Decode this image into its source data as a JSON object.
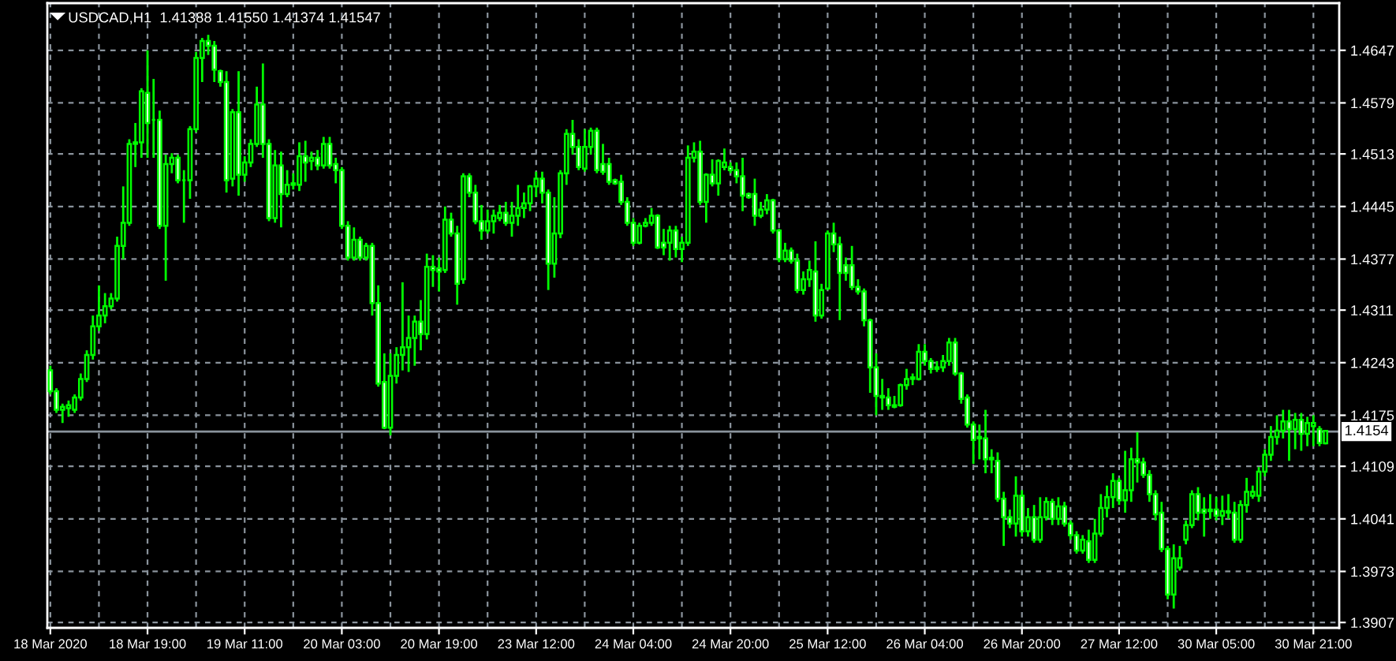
{
  "chart_data": {
    "type": "candlestick",
    "title": "USDCAD,H1  1.41388 1.41550 1.41374 1.41547",
    "categories": [
      "18 Mar 2020",
      null,
      null,
      null,
      null,
      null,
      null,
      null,
      null,
      null,
      null,
      null,
      null,
      null,
      null,
      null,
      "18 Mar 19:00",
      null,
      null,
      null,
      null,
      null,
      null,
      null,
      null,
      null,
      null,
      null,
      null,
      null,
      null,
      null,
      "19 Mar 11:00",
      null,
      null,
      null,
      null,
      null,
      null,
      null,
      null,
      null,
      null,
      null,
      null,
      null,
      null,
      null,
      "20 Mar 03:00",
      null,
      null,
      null,
      null,
      null,
      null,
      null,
      null,
      null,
      null,
      null,
      null,
      null,
      null,
      null,
      "20 Mar 19:00",
      null,
      null,
      null,
      null,
      null,
      null,
      null,
      null,
      null,
      null,
      null,
      null,
      null,
      null,
      null,
      "23 Mar 12:00",
      null,
      null,
      null,
      null,
      null,
      null,
      null,
      null,
      null,
      null,
      null,
      null,
      null,
      null,
      null,
      "24 Mar 04:00",
      null,
      null,
      null,
      null,
      null,
      null,
      null,
      null,
      null,
      null,
      null,
      null,
      null,
      null,
      null,
      "24 Mar 20:00",
      null,
      null,
      null,
      null,
      null,
      null,
      null,
      null,
      null,
      null,
      null,
      null,
      null,
      null,
      null,
      "25 Mar 12:00",
      null,
      null,
      null,
      null,
      null,
      null,
      null,
      null,
      null,
      null,
      null,
      null,
      null,
      null,
      null,
      "26 Mar 04:00",
      null,
      null,
      null,
      null,
      null,
      null,
      null,
      null,
      null,
      null,
      null,
      null,
      null,
      null,
      null,
      "26 Mar 20:00",
      null,
      null,
      null,
      null,
      null,
      null,
      null,
      null,
      null,
      null,
      null,
      null,
      null,
      null,
      null,
      "27 Mar 12:00",
      null,
      null,
      null,
      null,
      null,
      null,
      null,
      null,
      null,
      null,
      null,
      null,
      null,
      null,
      null,
      "30 Mar 05:00",
      null,
      null,
      null,
      null,
      null,
      null,
      null,
      null,
      null,
      null,
      null,
      null,
      null,
      null,
      null,
      "30 Mar 21:00",
      null,
      null
    ],
    "color": "#00ff00",
    "ohlc": [
      [
        1.4233,
        1.4239,
        1.4202,
        1.4206
      ],
      [
        1.4206,
        1.421,
        1.4178,
        1.4182
      ],
      [
        1.4182,
        1.419,
        1.4165,
        1.4186
      ],
      [
        1.4184,
        1.4194,
        1.4173,
        1.4188
      ],
      [
        1.4182,
        1.4202,
        1.4178,
        1.4198
      ],
      [
        1.4198,
        1.4229,
        1.4194,
        1.4222
      ],
      [
        1.4222,
        1.4259,
        1.4218,
        1.4253
      ],
      [
        1.4253,
        1.4304,
        1.4247,
        1.429
      ],
      [
        1.429,
        1.4343,
        1.4284,
        1.4304
      ],
      [
        1.4304,
        1.4333,
        1.4294,
        1.4316
      ],
      [
        1.4316,
        1.4333,
        1.4312,
        1.4326
      ],
      [
        1.4326,
        1.4406,
        1.4322,
        1.4394
      ],
      [
        1.4394,
        1.4471,
        1.4377,
        1.4424
      ],
      [
        1.4424,
        1.4532,
        1.442,
        1.4526
      ],
      [
        1.4526,
        1.4553,
        1.4496,
        1.4528
      ],
      [
        1.4528,
        1.4598,
        1.4508,
        1.4594
      ],
      [
        1.4592,
        1.4647,
        1.4508,
        1.4553
      ],
      [
        1.4557,
        1.461,
        1.4508,
        1.4557
      ],
      [
        1.4557,
        1.4569,
        1.4416,
        1.442
      ],
      [
        1.442,
        1.4512,
        1.4349,
        1.45
      ],
      [
        1.45,
        1.4514,
        1.4488,
        1.4508
      ],
      [
        1.4508,
        1.4512,
        1.4475,
        1.4479
      ],
      [
        1.4479,
        1.4492,
        1.4424,
        1.4479
      ],
      [
        1.4479,
        1.4549,
        1.4455,
        1.4545
      ],
      [
        1.4545,
        1.4645,
        1.4541,
        1.4637
      ],
      [
        1.4637,
        1.4663,
        1.4606,
        1.4659
      ],
      [
        1.4659,
        1.4667,
        1.4641,
        1.4653
      ],
      [
        1.4653,
        1.4659,
        1.4606,
        1.4622
      ],
      [
        1.462,
        1.4622,
        1.46,
        1.4606
      ],
      [
        1.4606,
        1.462,
        1.4463,
        1.4479
      ],
      [
        1.4481,
        1.4571,
        1.4471,
        1.4567
      ],
      [
        1.4567,
        1.462,
        1.4459,
        1.4486
      ],
      [
        1.4486,
        1.451,
        1.4477,
        1.4502
      ],
      [
        1.4502,
        1.4532,
        1.4496,
        1.4526
      ],
      [
        1.4526,
        1.46,
        1.4522,
        1.4577
      ],
      [
        1.4577,
        1.463,
        1.4508,
        1.4526
      ],
      [
        1.4526,
        1.4532,
        1.4426,
        1.443
      ],
      [
        1.443,
        1.4518,
        1.4424,
        1.4498
      ],
      [
        1.4498,
        1.4516,
        1.4418,
        1.4461
      ],
      [
        1.4461,
        1.4492,
        1.4457,
        1.4473
      ],
      [
        1.4473,
        1.4488,
        1.4467,
        1.4475
      ],
      [
        1.4473,
        1.4528,
        1.4465,
        1.451
      ],
      [
        1.451,
        1.453,
        1.4477,
        1.4502
      ],
      [
        1.4504,
        1.4516,
        1.4492,
        1.4508
      ],
      [
        1.4508,
        1.4518,
        1.4492,
        1.4498
      ],
      [
        1.4498,
        1.4535,
        1.4494,
        1.4526
      ],
      [
        1.4526,
        1.4535,
        1.4494,
        1.4498
      ],
      [
        1.45,
        1.4508,
        1.4475,
        1.4492
      ],
      [
        1.4492,
        1.4496,
        1.4416,
        1.442
      ],
      [
        1.442,
        1.4426,
        1.4375,
        1.4379
      ],
      [
        1.4379,
        1.4418,
        1.4375,
        1.4402
      ],
      [
        1.4402,
        1.4406,
        1.4375,
        1.4379
      ],
      [
        1.4379,
        1.4398,
        1.4375,
        1.4394
      ],
      [
        1.4394,
        1.4398,
        1.4304,
        1.432
      ],
      [
        1.432,
        1.4343,
        1.4212,
        1.4216
      ],
      [
        1.4218,
        1.4255,
        1.4157,
        1.4159
      ],
      [
        1.4159,
        1.4255,
        1.4149,
        1.4226
      ],
      [
        1.4226,
        1.4263,
        1.4216,
        1.4253
      ],
      [
        1.4253,
        1.4347,
        1.4233,
        1.4263
      ],
      [
        1.4263,
        1.4304,
        1.4231,
        1.4275
      ],
      [
        1.4275,
        1.4304,
        1.4239,
        1.4296
      ],
      [
        1.4296,
        1.4324,
        1.4259,
        1.428
      ],
      [
        1.428,
        1.4384,
        1.4273,
        1.4367
      ],
      [
        1.4367,
        1.4382,
        1.4341,
        1.4363
      ],
      [
        1.4365,
        1.4379,
        1.4335,
        1.4361
      ],
      [
        1.4363,
        1.4445,
        1.4359,
        1.4428
      ],
      [
        1.4428,
        1.4437,
        1.4406,
        1.441
      ],
      [
        1.441,
        1.442,
        1.4318,
        1.4345
      ],
      [
        1.4351,
        1.4488,
        1.4345,
        1.4484
      ],
      [
        1.4484,
        1.4488,
        1.4457,
        1.4463
      ],
      [
        1.4463,
        1.4473,
        1.4422,
        1.4426
      ],
      [
        1.4426,
        1.4447,
        1.4402,
        1.4414
      ],
      [
        1.4414,
        1.4441,
        1.441,
        1.4426
      ],
      [
        1.4426,
        1.4441,
        1.441,
        1.4433
      ],
      [
        1.443,
        1.4447,
        1.4426,
        1.4437
      ],
      [
        1.4437,
        1.4451,
        1.442,
        1.4424
      ],
      [
        1.4424,
        1.4451,
        1.4406,
        1.4433
      ],
      [
        1.4433,
        1.4473,
        1.442,
        1.4443
      ],
      [
        1.4443,
        1.4463,
        1.443,
        1.4449
      ],
      [
        1.4449,
        1.4473,
        1.4439,
        1.4471
      ],
      [
        1.4471,
        1.449,
        1.4457,
        1.4481
      ],
      [
        1.4481,
        1.449,
        1.4449,
        1.4463
      ],
      [
        1.4463,
        1.4467,
        1.4337,
        1.4371
      ],
      [
        1.4371,
        1.4457,
        1.4353,
        1.441
      ],
      [
        1.441,
        1.4492,
        1.4404,
        1.4488
      ],
      [
        1.4488,
        1.4545,
        1.4473,
        1.4539
      ],
      [
        1.4539,
        1.4557,
        1.4512,
        1.4522
      ],
      [
        1.4522,
        1.4532,
        1.4492,
        1.4496
      ],
      [
        1.4494,
        1.4545,
        1.449,
        1.4522
      ],
      [
        1.4522,
        1.4547,
        1.4512,
        1.4543
      ],
      [
        1.4543,
        1.4547,
        1.4488,
        1.4492
      ],
      [
        1.45,
        1.4526,
        1.4486,
        1.449
      ],
      [
        1.45,
        1.4508,
        1.4473,
        1.4477
      ],
      [
        1.4479,
        1.4481,
        1.4473,
        1.4475
      ],
      [
        1.4477,
        1.4486,
        1.4447,
        1.4451
      ],
      [
        1.4451,
        1.4457,
        1.442,
        1.4424
      ],
      [
        1.4424,
        1.443,
        1.4394,
        1.4398
      ],
      [
        1.4398,
        1.4424,
        1.4396,
        1.442
      ],
      [
        1.442,
        1.443,
        1.4418,
        1.4424
      ],
      [
        1.4424,
        1.4443,
        1.442,
        1.4433
      ],
      [
        1.4433,
        1.4435,
        1.439,
        1.4392
      ],
      [
        1.4398,
        1.4416,
        1.4382,
        1.4392
      ],
      [
        1.4398,
        1.442,
        1.4375,
        1.4414
      ],
      [
        1.4414,
        1.442,
        1.4379,
        1.439
      ],
      [
        1.439,
        1.4406,
        1.4373,
        1.4398
      ],
      [
        1.4398,
        1.4524,
        1.4394,
        1.4508
      ],
      [
        1.4508,
        1.4528,
        1.4502,
        1.4516
      ],
      [
        1.4516,
        1.453,
        1.4447,
        1.4451
      ],
      [
        1.4451,
        1.4488,
        1.4424,
        1.4486
      ],
      [
        1.4486,
        1.4506,
        1.4471,
        1.4475
      ],
      [
        1.4475,
        1.4506,
        1.4459,
        1.4504
      ],
      [
        1.4496,
        1.452,
        1.4492,
        1.4502
      ],
      [
        1.4496,
        1.4502,
        1.4488,
        1.4492
      ],
      [
        1.4492,
        1.4502,
        1.4475,
        1.4484
      ],
      [
        1.4484,
        1.4508,
        1.4439,
        1.4459
      ],
      [
        1.4461,
        1.4463,
        1.4455,
        1.4457
      ],
      [
        1.4461,
        1.4481,
        1.442,
        1.4433
      ],
      [
        1.4433,
        1.4451,
        1.443,
        1.4441
      ],
      [
        1.4441,
        1.4461,
        1.4435,
        1.4453
      ],
      [
        1.4453,
        1.4455,
        1.441,
        1.4414
      ],
      [
        1.4414,
        1.4416,
        1.4373,
        1.4377
      ],
      [
        1.4377,
        1.4398,
        1.4373,
        1.4388
      ],
      [
        1.4388,
        1.4392,
        1.4371,
        1.4375
      ],
      [
        1.4375,
        1.4384,
        1.4333,
        1.4337
      ],
      [
        1.4337,
        1.4361,
        1.4331,
        1.4351
      ],
      [
        1.4351,
        1.4375,
        1.4341,
        1.4363
      ],
      [
        1.4361,
        1.44,
        1.4296,
        1.4304
      ],
      [
        1.4304,
        1.4345,
        1.43,
        1.4337
      ],
      [
        1.4339,
        1.4414,
        1.4337,
        1.441
      ],
      [
        1.441,
        1.4424,
        1.4386,
        1.4396
      ],
      [
        1.4396,
        1.4406,
        1.4298,
        1.4359
      ],
      [
        1.4369,
        1.4379,
        1.4349,
        1.4359
      ],
      [
        1.4369,
        1.4394,
        1.4337,
        1.4341
      ],
      [
        1.4341,
        1.4351,
        1.4331,
        1.4335
      ],
      [
        1.4335,
        1.4339,
        1.429,
        1.4298
      ],
      [
        1.4298,
        1.43,
        1.4204,
        1.4237
      ],
      [
        1.4237,
        1.4255,
        1.4175,
        1.42
      ],
      [
        1.42,
        1.4222,
        1.4182,
        1.4198
      ],
      [
        1.4198,
        1.421,
        1.4182,
        1.4188
      ],
      [
        1.4188,
        1.42,
        1.4184,
        1.4186
      ],
      [
        1.4188,
        1.4216,
        1.4186,
        1.4214
      ],
      [
        1.4214,
        1.4235,
        1.4208,
        1.4222
      ],
      [
        1.4222,
        1.4229,
        1.4214,
        1.4224
      ],
      [
        1.4222,
        1.4267,
        1.422,
        1.4257
      ],
      [
        1.4257,
        1.4267,
        1.4239,
        1.4245
      ],
      [
        1.4245,
        1.4249,
        1.4229,
        1.4235
      ],
      [
        1.4235,
        1.4245,
        1.4231,
        1.4237
      ],
      [
        1.4237,
        1.4253,
        1.4231,
        1.4245
      ],
      [
        1.4245,
        1.4275,
        1.4239,
        1.4269
      ],
      [
        1.4269,
        1.4275,
        1.4226,
        1.4229
      ],
      [
        1.4229,
        1.4231,
        1.419,
        1.4196
      ],
      [
        1.4198,
        1.4202,
        1.4159,
        1.4163
      ],
      [
        1.4163,
        1.4167,
        1.4112,
        1.4143
      ],
      [
        1.4147,
        1.4163,
        1.4118,
        1.4145
      ],
      [
        1.4145,
        1.4182,
        1.41,
        1.4118
      ],
      [
        1.412,
        1.4131,
        1.41,
        1.4118
      ],
      [
        1.4116,
        1.4127,
        1.4063,
        1.4067
      ],
      [
        1.4067,
        1.4076,
        1.4006,
        1.4043
      ],
      [
        1.4043,
        1.4053,
        1.4029,
        1.4035
      ],
      [
        1.4035,
        1.4096,
        1.4018,
        1.4071
      ],
      [
        1.4071,
        1.4078,
        1.4018,
        1.4025
      ],
      [
        1.4025,
        1.4055,
        1.4018,
        1.4043
      ],
      [
        1.4043,
        1.4059,
        1.401,
        1.4014
      ],
      [
        1.4014,
        1.4069,
        1.401,
        1.4043
      ],
      [
        1.4043,
        1.4069,
        1.4039,
        1.4063
      ],
      [
        1.4063,
        1.4067,
        1.4033,
        1.4041
      ],
      [
        1.4041,
        1.4069,
        1.4033,
        1.4057
      ],
      [
        1.4057,
        1.4063,
        1.4031,
        1.4035
      ],
      [
        1.4035,
        1.4039,
        1.4014,
        1.402
      ],
      [
        1.402,
        1.4025,
        1.3996,
        1.4
      ],
      [
        1.4,
        1.402,
        1.3996,
        1.4014
      ],
      [
        1.4012,
        1.4027,
        1.3984,
        1.3988
      ],
      [
        1.3988,
        1.4041,
        1.3984,
        1.4022
      ],
      [
        1.4022,
        1.4073,
        1.4018,
        1.4055
      ],
      [
        1.4055,
        1.4084,
        1.4043,
        1.4069
      ],
      [
        1.4069,
        1.41,
        1.4055,
        1.409
      ],
      [
        1.409,
        1.4094,
        1.4059,
        1.4065
      ],
      [
        1.4065,
        1.4129,
        1.4049,
        1.4078
      ],
      [
        1.4078,
        1.4133,
        1.4063,
        1.4118
      ],
      [
        1.4118,
        1.4153,
        1.4088,
        1.4114
      ],
      [
        1.4114,
        1.412,
        1.4094,
        1.4098
      ],
      [
        1.4098,
        1.4104,
        1.4063,
        1.4073
      ],
      [
        1.4073,
        1.4078,
        1.4039,
        1.4047
      ],
      [
        1.4049,
        1.4063,
        1.3998,
        1.4002
      ],
      [
        1.4002,
        1.4006,
        1.3937,
        1.3943
      ],
      [
        1.3943,
        1.4008,
        1.3925,
        1.399
      ],
      [
        1.3978,
        1.4006,
        1.3974,
        1.399
      ],
      [
        1.4014,
        1.4039,
        1.4008,
        1.4033
      ],
      [
        1.4033,
        1.4078,
        1.4029,
        1.4073
      ],
      [
        1.4073,
        1.4082,
        1.4039,
        1.4049
      ],
      [
        1.4053,
        1.4069,
        1.4018,
        1.4049
      ],
      [
        1.4051,
        1.4073,
        1.4041,
        1.4053
      ],
      [
        1.4053,
        1.4069,
        1.4039,
        1.4045
      ],
      [
        1.4045,
        1.4071,
        1.4033,
        1.4051
      ],
      [
        1.4049,
        1.4073,
        1.4041,
        1.4051
      ],
      [
        1.4049,
        1.4063,
        1.401,
        1.4014
      ],
      [
        1.4014,
        1.4065,
        1.401,
        1.4059
      ],
      [
        1.4059,
        1.4094,
        1.4049,
        1.4076
      ],
      [
        1.4071,
        1.4084,
        1.4067,
        1.4076
      ],
      [
        1.4071,
        1.4108,
        1.4063,
        1.4102
      ],
      [
        1.4102,
        1.4131,
        1.4096,
        1.4124
      ],
      [
        1.4124,
        1.4161,
        1.4116,
        1.4147
      ],
      [
        1.4147,
        1.4175,
        1.4137,
        1.4155
      ],
      [
        1.4155,
        1.4182,
        1.4145,
        1.4167
      ],
      [
        1.4167,
        1.4182,
        1.4116,
        1.4157
      ],
      [
        1.4157,
        1.4178,
        1.4131,
        1.4169
      ],
      [
        1.4169,
        1.4178,
        1.4129,
        1.4151
      ],
      [
        1.4151,
        1.4173,
        1.4135,
        1.4165
      ],
      [
        1.4161,
        1.4175,
        1.4135,
        1.4165
      ],
      [
        1.4157,
        1.4161,
        1.4135,
        1.4139
      ],
      [
        1.41388,
        1.4155,
        1.41374,
        1.41547
      ]
    ],
    "ylim": [
      1.39,
      1.4708
    ],
    "yticks": [
      1.4647,
      1.4579,
      1.4513,
      1.4445,
      1.4377,
      1.4311,
      1.4243,
      1.4175,
      1.4109,
      1.4041,
      1.3973,
      1.3907
    ],
    "grid": true,
    "ref_lines": [
      {
        "axis": "y",
        "value": 1.4154,
        "label": "1.4154",
        "color": "#8a939c"
      }
    ]
  }
}
